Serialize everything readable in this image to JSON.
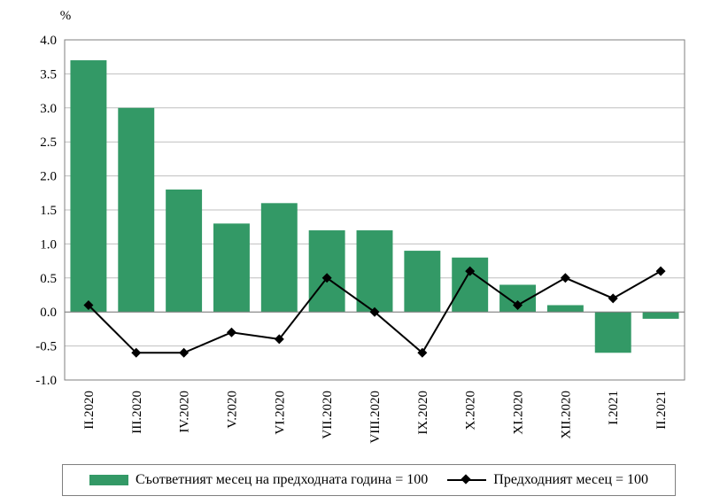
{
  "chart_data": {
    "type": "bar",
    "unit_label": "%",
    "categories": [
      "II.2020",
      "III.2020",
      "IV.2020",
      "V.2020",
      "VI.2020",
      "VII.2020",
      "VIII.2020",
      "IX.2020",
      "X.2020",
      "XI.2020",
      "XII.2020",
      "I.2021",
      "II.2021"
    ],
    "ylim": [
      -1.0,
      4.0
    ],
    "yticks": [
      "4.0",
      "3.5",
      "3.0",
      "2.5",
      "2.0",
      "1.5",
      "1.0",
      "0.5",
      "0.0",
      "-0.5",
      "-1.0"
    ],
    "grid": true,
    "legend_position": "bottom",
    "series": [
      {
        "name": "Съответният месец на предходната година = 100",
        "type": "bar",
        "color": "#339966",
        "values": [
          3.7,
          3.0,
          1.8,
          1.3,
          1.6,
          1.2,
          1.2,
          0.9,
          0.8,
          0.4,
          0.1,
          -0.6,
          -0.1
        ]
      },
      {
        "name": "Предходният месец = 100",
        "type": "line",
        "color": "#000000",
        "marker": "diamond",
        "values": [
          0.1,
          -0.6,
          -0.6,
          -0.3,
          -0.4,
          0.5,
          0.0,
          -0.6,
          0.6,
          0.1,
          0.5,
          0.2,
          0.6
        ]
      }
    ]
  }
}
